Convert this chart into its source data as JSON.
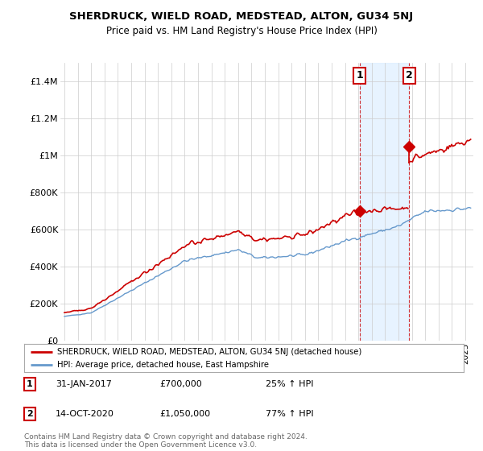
{
  "title1": "SHERDRUCK, WIELD ROAD, MEDSTEAD, ALTON, GU34 5NJ",
  "title2": "Price paid vs. HM Land Registry's House Price Index (HPI)",
  "ylabel_ticks": [
    "£0",
    "£200K",
    "£400K",
    "£600K",
    "£800K",
    "£1M",
    "£1.2M",
    "£1.4M"
  ],
  "ytick_vals": [
    0,
    200000,
    400000,
    600000,
    800000,
    1000000,
    1200000,
    1400000
  ],
  "ylim": [
    0,
    1500000
  ],
  "legend_line1": "SHERDRUCK, WIELD ROAD, MEDSTEAD, ALTON, GU34 5NJ (detached house)",
  "legend_line2": "HPI: Average price, detached house, East Hampshire",
  "sale1_date": "31-JAN-2017",
  "sale1_price": "£700,000",
  "sale1_hpi": "25% ↑ HPI",
  "sale2_date": "14-OCT-2020",
  "sale2_price": "£1,050,000",
  "sale2_hpi": "77% ↑ HPI",
  "footnote": "Contains HM Land Registry data © Crown copyright and database right 2024.\nThis data is licensed under the Open Government Licence v3.0.",
  "color_red": "#cc0000",
  "color_blue": "#6699cc",
  "color_grid": "#cccccc",
  "color_bg": "#ffffff",
  "color_shade": "#ddeeff",
  "sale1_x": 2017.08,
  "sale1_y": 700000,
  "sale2_x": 2020.79,
  "sale2_y": 1050000,
  "xlim_left": 1994.7,
  "xlim_right": 2025.6
}
